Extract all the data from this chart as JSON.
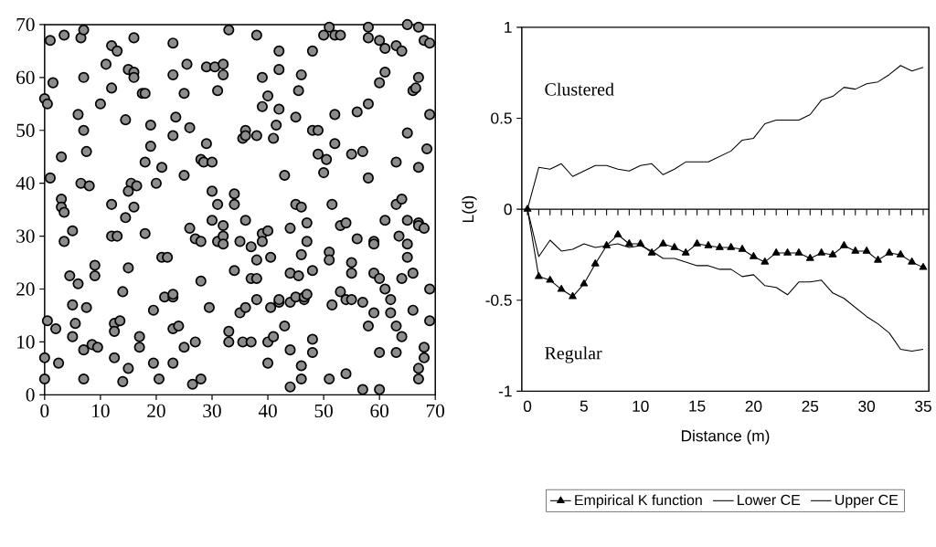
{
  "chart_data": [
    {
      "type": "scatter",
      "color": "#8c8c8c",
      "xlim": [
        0,
        70
      ],
      "ylim": [
        0,
        70
      ],
      "xticks": [
        0,
        10,
        20,
        30,
        40,
        50,
        60,
        70
      ],
      "yticks": [
        0,
        10,
        20,
        30,
        40,
        50,
        60,
        70
      ],
      "grid": false,
      "legend": false,
      "x": [
        0,
        0.5,
        1,
        1.5,
        1,
        0.5,
        0,
        0,
        2,
        2.5,
        3,
        3,
        3,
        3.5,
        3.5,
        3.5,
        4.5,
        5,
        5,
        5,
        5.5,
        6,
        6,
        6.5,
        6.5,
        7,
        7,
        7.5,
        7,
        7.5,
        7,
        7,
        8,
        8.5,
        9,
        9,
        9.5,
        10,
        11,
        12,
        12,
        12,
        12,
        12.5,
        12.5,
        12.5,
        13,
        13,
        13.5,
        14,
        14,
        14.5,
        14.5,
        15,
        15,
        15.5,
        15,
        15,
        16,
        16,
        16,
        16,
        16.5,
        17,
        17,
        17.5,
        18,
        18,
        18,
        19,
        19,
        19.5,
        19.5,
        20,
        20.5,
        21,
        21,
        21.5,
        22,
        23,
        23,
        23,
        23,
        23,
        23,
        23,
        23.5,
        24,
        25,
        25,
        25,
        25.5,
        26,
        26,
        26.5,
        27,
        27,
        28,
        28,
        28,
        28,
        28.5,
        29,
        29,
        29.5,
        30,
        30,
        30,
        30.5,
        31,
        31,
        31,
        32,
        32,
        32,
        32,
        32,
        33,
        33,
        33,
        34,
        34,
        34,
        35,
        35,
        35.5,
        35.5,
        36,
        36,
        36,
        36,
        37,
        37,
        37,
        38,
        38,
        38,
        38,
        38,
        39,
        39,
        39,
        39,
        40,
        40,
        40,
        40,
        40.5,
        40.5,
        41,
        41,
        41.5,
        42,
        42,
        42,
        42,
        42,
        43,
        43,
        44,
        44,
        44,
        44,
        44,
        45,
        45,
        45,
        45.5,
        45.5,
        46,
        46,
        46,
        46,
        46,
        46.5,
        46.5,
        47,
        47,
        47,
        48,
        48,
        48,
        48,
        48,
        49,
        49,
        50,
        50,
        50.5,
        51,
        51,
        51,
        51,
        51.5,
        51.5,
        52,
        52,
        52,
        53,
        53,
        53,
        54,
        54,
        54,
        55,
        55,
        55,
        55,
        56,
        56,
        57,
        57,
        57,
        58,
        58,
        58,
        58,
        58,
        59,
        59,
        59,
        59,
        60,
        60,
        60,
        60,
        60,
        61,
        61,
        61,
        61,
        62,
        62,
        63,
        63,
        63,
        63,
        63,
        63.5,
        64,
        64,
        64,
        64,
        65,
        65,
        65,
        65,
        65,
        66,
        66,
        66,
        66.5,
        67,
        67,
        67,
        67,
        67,
        67,
        67,
        68,
        68,
        68,
        68,
        68.5,
        69,
        69,
        69,
        69
      ],
      "values": [
        56,
        55,
        67,
        59,
        41,
        14,
        7,
        3,
        12.5,
        6,
        45,
        37,
        35.5,
        34.5,
        68,
        29,
        22.5,
        31,
        17,
        11,
        13.5,
        53,
        21,
        40,
        67.5,
        69,
        50,
        46,
        60,
        16.5,
        8.5,
        3,
        39.5,
        9.5,
        24.5,
        22.5,
        9,
        55,
        62.5,
        66,
        58,
        36,
        30,
        13.5,
        12,
        7,
        65,
        30,
        14,
        19.5,
        2.5,
        33.5,
        52,
        61.5,
        24,
        40,
        38.5,
        5,
        67.5,
        61,
        35.5,
        60,
        39.5,
        9,
        11,
        57,
        30.5,
        44,
        57,
        51,
        47,
        16,
        6,
        40,
        3,
        43,
        26,
        18.5,
        26,
        60.5,
        18.5,
        19,
        12.5,
        6,
        66.5,
        49,
        52.5,
        13,
        57,
        9,
        41.5,
        62.5,
        50.5,
        31.5,
        2,
        29.5,
        10,
        29,
        21.5,
        3,
        44.5,
        44,
        62,
        47.5,
        16.5,
        33,
        38.5,
        44,
        62,
        57.5,
        36,
        29,
        62.5,
        60.5,
        30,
        32,
        28.5,
        69,
        12,
        10,
        36,
        38,
        23.5,
        15.5,
        29,
        48.5,
        10,
        33,
        50,
        49,
        16.5,
        10,
        28,
        22,
        68,
        49,
        25.5,
        18,
        22,
        60,
        54.5,
        30.5,
        29,
        31,
        56.5,
        10,
        6,
        16.5,
        26,
        48.5,
        11,
        51,
        54,
        61.5,
        17.5,
        18,
        65,
        13,
        41.5,
        31.5,
        23,
        8.5,
        1.5,
        17.5,
        18.5,
        36,
        52.5,
        57.5,
        22.5,
        35.5,
        60.5,
        26.5,
        5.5,
        3,
        18,
        18.5,
        19,
        32.5,
        29,
        23.5,
        10.5,
        50,
        8,
        65,
        50,
        45.5,
        68,
        42,
        44.5,
        69.5,
        27,
        25.5,
        3,
        36,
        17,
        47.5,
        53,
        68,
        68,
        32,
        19.5,
        18,
        32.5,
        4,
        45.5,
        23,
        25,
        18,
        53.5,
        29.5,
        1,
        17.5,
        46,
        69.5,
        67.5,
        41,
        55,
        13,
        15.5,
        29,
        28.5,
        23,
        59,
        67,
        22,
        8,
        1,
        33,
        61,
        20,
        65.5,
        15.5,
        18,
        66,
        44,
        36,
        8,
        13,
        30,
        22,
        11,
        37,
        65,
        49.5,
        70,
        33,
        26,
        28.5,
        23,
        16,
        57.5,
        58,
        43,
        60,
        32.5,
        69.5,
        32,
        5,
        3,
        67,
        7,
        31.5,
        9,
        46.5,
        66.5,
        53,
        20,
        14
      ]
    },
    {
      "type": "line",
      "xlabel": "Distance (m)",
      "ylabel": "L(d)",
      "xlim": [
        -0.5,
        35.5
      ],
      "ylim": [
        -1,
        1
      ],
      "yticks": [
        -1,
        -0.5,
        0,
        0.5,
        1
      ],
      "xticks": [
        0,
        {
          "value": 1,
          "label": null
        },
        {
          "value": 2,
          "label": null
        },
        {
          "value": 3,
          "label": null
        },
        {
          "value": 4,
          "label": null
        },
        5,
        {
          "value": 6,
          "label": null
        },
        {
          "value": 7,
          "label": null
        },
        {
          "value": 8,
          "label": null
        },
        {
          "value": 9,
          "label": null
        },
        10,
        {
          "value": 11,
          "label": null
        },
        {
          "value": 12,
          "label": null
        },
        {
          "value": 13,
          "label": null
        },
        {
          "value": 14,
          "label": null
        },
        15,
        {
          "value": 16,
          "label": null
        },
        {
          "value": 17,
          "label": null
        },
        {
          "value": 18,
          "label": null
        },
        {
          "value": 19,
          "label": null
        },
        20,
        {
          "value": 21,
          "label": null
        },
        {
          "value": 22,
          "label": null
        },
        {
          "value": 23,
          "label": null
        },
        {
          "value": 24,
          "label": null
        },
        25,
        {
          "value": 26,
          "label": null
        },
        {
          "value": 27,
          "label": null
        },
        {
          "value": 28,
          "label": null
        },
        {
          "value": 29,
          "label": null
        },
        30,
        {
          "value": 31,
          "label": null
        },
        {
          "value": 32,
          "label": null
        },
        {
          "value": 33,
          "label": null
        },
        {
          "value": 34,
          "label": null
        },
        35
      ],
      "x": [
        0,
        1,
        2,
        3,
        4,
        5,
        6,
        7,
        8,
        9,
        10,
        11,
        12,
        13,
        14,
        15,
        16,
        17,
        18,
        19,
        20,
        21,
        22,
        23,
        24,
        25,
        26,
        27,
        28,
        29,
        30,
        31,
        32,
        33,
        34,
        35
      ],
      "grid": false,
      "legend": "bottom",
      "line_style": "solid",
      "ref_lines": [
        {
          "axis": "y",
          "value": 0
        }
      ],
      "annotations": [
        "Clustered",
        "Regular"
      ],
      "series": [
        {
          "name": "Empirical K function",
          "color": "#000000",
          "marker": "triangle",
          "values": [
            0,
            -0.37,
            -0.39,
            -0.44,
            -0.48,
            -0.41,
            -0.3,
            -0.2,
            -0.14,
            -0.19,
            -0.19,
            -0.24,
            -0.19,
            -0.21,
            -0.24,
            -0.19,
            -0.2,
            -0.21,
            -0.21,
            -0.22,
            -0.26,
            -0.29,
            -0.24,
            -0.24,
            -0.24,
            -0.27,
            -0.24,
            -0.25,
            -0.2,
            -0.23,
            -0.23,
            -0.28,
            -0.24,
            -0.25,
            -0.29,
            -0.32
          ]
        },
        {
          "name": "Lower CE",
          "color": "#000000",
          "marker": "none",
          "values": [
            0,
            -0.26,
            -0.17,
            -0.23,
            -0.22,
            -0.19,
            -0.21,
            -0.2,
            -0.19,
            -0.21,
            -0.2,
            -0.23,
            -0.27,
            -0.27,
            -0.29,
            -0.31,
            -0.31,
            -0.33,
            -0.33,
            -0.37,
            -0.36,
            -0.42,
            -0.43,
            -0.47,
            -0.4,
            -0.4,
            -0.39,
            -0.46,
            -0.49,
            -0.54,
            -0.59,
            -0.63,
            -0.68,
            -0.77,
            -0.78,
            -0.77
          ]
        },
        {
          "name": "Upper CE",
          "color": "#000000",
          "marker": "none",
          "values": [
            0,
            0.23,
            0.22,
            0.25,
            0.18,
            0.21,
            0.24,
            0.24,
            0.22,
            0.21,
            0.24,
            0.25,
            0.19,
            0.22,
            0.26,
            0.26,
            0.26,
            0.29,
            0.32,
            0.38,
            0.39,
            0.47,
            0.49,
            0.49,
            0.49,
            0.52,
            0.6,
            0.62,
            0.67,
            0.66,
            0.69,
            0.7,
            0.74,
            0.79,
            0.76,
            0.78
          ]
        }
      ]
    }
  ]
}
